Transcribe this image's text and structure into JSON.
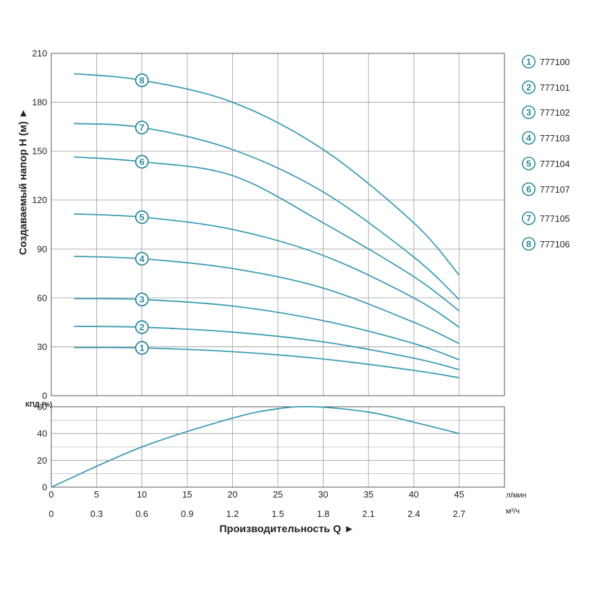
{
  "colors": {
    "curve": "#3a9bb0",
    "marker": "#2a8a9c",
    "grid": "#9a9a9a",
    "frame": "#555555"
  },
  "chart_data": [
    {
      "type": "line",
      "title": "",
      "ylabel": "Создаваемый напор H (м) ►",
      "xlabel": "",
      "xlim": [
        0,
        50
      ],
      "ylim": [
        0,
        210
      ],
      "x_ticks": [
        0,
        5,
        10,
        15,
        20,
        25,
        30,
        35,
        40,
        45
      ],
      "y_ticks": [
        0,
        30,
        60,
        90,
        120,
        150,
        180,
        210
      ],
      "grid": true,
      "legend_position": "right",
      "series": [
        {
          "name": "777100",
          "marker": "1",
          "x": [
            2.5,
            10,
            20,
            30,
            40,
            45
          ],
          "values": [
            29.5,
            29.3,
            27,
            22.5,
            15.5,
            11
          ]
        },
        {
          "name": "777101",
          "marker": "2",
          "x": [
            2.5,
            10,
            20,
            30,
            40,
            45
          ],
          "values": [
            42.5,
            42,
            39,
            33,
            23,
            16
          ]
        },
        {
          "name": "777102",
          "marker": "3",
          "x": [
            2.5,
            10,
            20,
            30,
            40,
            45
          ],
          "values": [
            59.5,
            59,
            55,
            46,
            32,
            22
          ]
        },
        {
          "name": "777103",
          "marker": "4",
          "x": [
            2.5,
            10,
            20,
            30,
            40,
            45
          ],
          "values": [
            85.5,
            84,
            78,
            66,
            45,
            32
          ]
        },
        {
          "name": "777104",
          "marker": "5",
          "x": [
            2.5,
            10,
            20,
            30,
            40,
            45
          ],
          "values": [
            111.5,
            109.5,
            102,
            86,
            60,
            42
          ]
        },
        {
          "name": "777107",
          "marker": "6",
          "x": [
            2.5,
            10,
            20,
            30,
            40,
            45
          ],
          "values": [
            146.5,
            143.5,
            135,
            106,
            73,
            52
          ]
        },
        {
          "name": "777105",
          "marker": "7",
          "x": [
            2.5,
            10,
            20,
            30,
            40,
            45
          ],
          "values": [
            167,
            164.5,
            151,
            125,
            85,
            59
          ]
        },
        {
          "name": "777106",
          "marker": "8",
          "x": [
            2.5,
            10,
            20,
            30,
            40,
            45
          ],
          "values": [
            197.5,
            193.5,
            180,
            151,
            106,
            74
          ]
        }
      ]
    },
    {
      "type": "line",
      "ylabel": "КПД (%)",
      "xlabel": "Производительность Q ►",
      "xlim": [
        0,
        50
      ],
      "ylim": [
        0,
        60
      ],
      "y_ticks": [
        0,
        20,
        40,
        60
      ],
      "x_ticks_lmin": [
        0,
        5,
        10,
        15,
        20,
        25,
        30,
        35,
        40,
        45
      ],
      "x_unit_lmin": "л/мин",
      "x_ticks_m3h": [
        "0",
        "0.3",
        "0.6",
        "0.9",
        "1.2",
        "1.5",
        "1.8",
        "2.1",
        "2.4",
        "2.7"
      ],
      "x_unit_m3h": "м³/ч",
      "grid": true,
      "series": [
        {
          "x": [
            0,
            10,
            20,
            25,
            29,
            35,
            40,
            45
          ],
          "values": [
            0,
            30,
            51.5,
            58.5,
            60,
            56,
            48.5,
            40
          ]
        }
      ]
    }
  ]
}
